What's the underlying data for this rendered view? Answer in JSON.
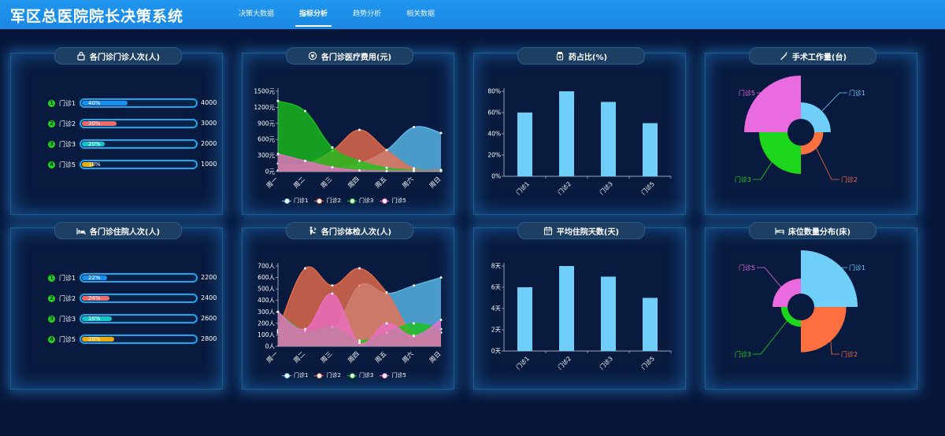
{
  "app": {
    "title": "军区总医院院长决策系统"
  },
  "nav": [
    {
      "label": "决策大数据",
      "active": false
    },
    {
      "label": "指标分析",
      "active": true
    },
    {
      "label": "趋势分析",
      "active": false
    },
    {
      "label": "相关数据",
      "active": false
    }
  ],
  "panels": {
    "outpatient_visits": {
      "title": "各门诊门诊人次(人)",
      "icon": "lock-icon",
      "rows": [
        {
          "num": "1",
          "label": "门诊1",
          "percent_text": "40%",
          "percent": 0.4,
          "value": "4000",
          "color": "#1a8ff2"
        },
        {
          "num": "2",
          "label": "门诊2",
          "percent_text": "30%",
          "percent": 0.3,
          "value": "3000",
          "color": "#ec6a6a"
        },
        {
          "num": "3",
          "label": "门诊3",
          "percent_text": "20%",
          "percent": 0.2,
          "value": "2000",
          "color": "#17c5c8"
        },
        {
          "num": "4",
          "label": "门诊5",
          "percent_text": "10%",
          "percent": 0.1,
          "value": "1000",
          "color": "#eaaa12"
        }
      ]
    },
    "inpatient_visits": {
      "title": "各门诊住院人次(人)",
      "icon": "bed-patient-icon",
      "rows": [
        {
          "num": "1",
          "label": "门诊1",
          "percent_text": "22%",
          "percent": 0.22,
          "value": "2200",
          "color": "#1a8ff2"
        },
        {
          "num": "2",
          "label": "门诊2",
          "percent_text": "24%",
          "percent": 0.24,
          "value": "2400",
          "color": "#ec6a6a"
        },
        {
          "num": "3",
          "label": "门诊3",
          "percent_text": "26%",
          "percent": 0.26,
          "value": "2600",
          "color": "#17c5c8"
        },
        {
          "num": "4",
          "label": "门诊5",
          "percent_text": "28%",
          "percent": 0.28,
          "value": "2800",
          "color": "#eaaa12"
        }
      ]
    },
    "medical_cost": {
      "title": "各门诊医疗费用(元)",
      "icon": "coin-icon"
    },
    "physical_exam": {
      "title": "各门诊体检人次(人)",
      "icon": "exam-icon"
    },
    "drug_ratio": {
      "title": "药占比(%)",
      "icon": "medicine-bottle-icon"
    },
    "avg_stay": {
      "title": "平均住院天数(天)",
      "icon": "calendar-icon"
    },
    "surgery": {
      "title": "手术工作量(台)",
      "icon": "scalpel-icon"
    },
    "beds": {
      "title": "床位数量分布(床)",
      "icon": "bed-icon"
    }
  },
  "chart_data": [
    {
      "id": "medical_cost",
      "type": "area",
      "categories": [
        "周一",
        "周二",
        "周三",
        "周四",
        "周五",
        "周六",
        "周日"
      ],
      "yticks": [
        "0元",
        "300元",
        "600元",
        "900元",
        "1200元",
        "1500元"
      ],
      "ylim": [
        0,
        1500
      ],
      "series": [
        {
          "name": "门诊1",
          "color": "#5fc0f2",
          "values": [
            20,
            30,
            60,
            150,
            400,
            830,
            720
          ]
        },
        {
          "name": "门诊2",
          "color": "#ef6f4d",
          "values": [
            150,
            140,
            390,
            780,
            400,
            60,
            30
          ]
        },
        {
          "name": "门诊3",
          "color": "#1bc41b",
          "values": [
            1320,
            1130,
            450,
            200,
            70,
            30,
            20
          ]
        },
        {
          "name": "门诊5",
          "color": "#ee6ec6",
          "values": [
            330,
            200,
            80,
            20,
            10,
            10,
            10
          ]
        }
      ]
    },
    {
      "id": "physical_exam",
      "type": "area",
      "categories": [
        "周一",
        "周二",
        "周三",
        "周四",
        "周五",
        "周六",
        "周日"
      ],
      "yticks": [
        "0人",
        "100人",
        "200人",
        "300人",
        "400人",
        "500人",
        "600人",
        "700人"
      ],
      "ylim": [
        0,
        700
      ],
      "series": [
        {
          "name": "门诊1",
          "color": "#5fc0f2",
          "values": [
            120,
            130,
            120,
            530,
            460,
            530,
            600
          ]
        },
        {
          "name": "门诊2",
          "color": "#ef6f4d",
          "values": [
            140,
            680,
            530,
            680,
            470,
            100,
            120
          ]
        },
        {
          "name": "门诊3",
          "color": "#1bc41b",
          "values": [
            300,
            130,
            170,
            50,
            120,
            200,
            150
          ]
        },
        {
          "name": "门诊5",
          "color": "#ee6ec6",
          "values": [
            300,
            150,
            460,
            30,
            200,
            90,
            230
          ]
        }
      ]
    },
    {
      "id": "drug_ratio",
      "type": "bar",
      "categories": [
        "门诊1",
        "门诊2",
        "门诊3",
        "门诊5"
      ],
      "values": [
        60,
        80,
        70,
        50
      ],
      "yticks": [
        "0%",
        "20%",
        "40%",
        "60%",
        "80%"
      ],
      "ylim": [
        0,
        80
      ]
    },
    {
      "id": "avg_stay",
      "type": "bar",
      "categories": [
        "门诊1",
        "门诊2",
        "门诊3",
        "门诊5"
      ],
      "values": [
        6,
        8,
        7,
        5
      ],
      "yticks": [
        "0天",
        "2天",
        "4天",
        "6天",
        "8天"
      ],
      "ylim": [
        0,
        8
      ]
    },
    {
      "id": "surgery",
      "type": "pie",
      "labels": [
        "门诊1",
        "门诊2",
        "门诊3",
        "门诊5"
      ],
      "values": [
        2,
        1.5,
        2.8,
        3.8
      ],
      "colors": [
        "#6fcff8",
        "#ff7040",
        "#1cd71c",
        "#ea6ae0"
      ]
    },
    {
      "id": "beds",
      "type": "pie",
      "labels": [
        "门诊1",
        "门诊2",
        "门诊3",
        "门诊5"
      ],
      "values": [
        4,
        3.2,
        1.4,
        2
      ],
      "colors": [
        "#6fcff8",
        "#ff7040",
        "#1cd71c",
        "#ea6ae0"
      ]
    }
  ]
}
